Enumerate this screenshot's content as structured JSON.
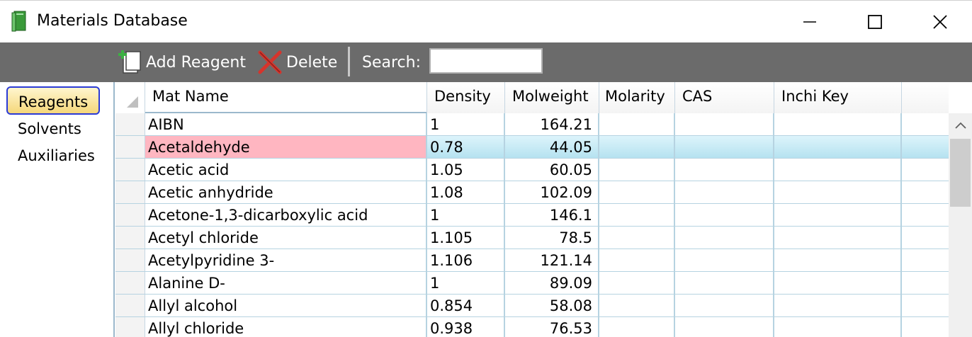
{
  "window": {
    "title": "Materials Database",
    "icon": "green-book-icon"
  },
  "toolbar": {
    "add_label": "Add Reagent",
    "delete_label": "Delete",
    "search_label": "Search:",
    "search_value": ""
  },
  "nav": {
    "items": [
      {
        "label": "Reagents",
        "selected": true
      },
      {
        "label": "Solvents",
        "selected": false
      },
      {
        "label": "Auxiliaries",
        "selected": false
      }
    ]
  },
  "grid": {
    "columns": [
      "Mat Name",
      "Density",
      "Molweight",
      "Molarity",
      "CAS",
      "Inchi Key"
    ],
    "rows": [
      {
        "name": "AIBN",
        "density": "1",
        "molweight": "164.21",
        "molarity": "",
        "cas": "",
        "inchi": ""
      },
      {
        "name": "Acetaldehyde",
        "density": "0.78",
        "molweight": "44.05",
        "molarity": "",
        "cas": "",
        "inchi": ""
      },
      {
        "name": "Acetic acid",
        "density": "1.05",
        "molweight": "60.05",
        "molarity": "",
        "cas": "",
        "inchi": ""
      },
      {
        "name": "Acetic anhydride",
        "density": "1.08",
        "molweight": "102.09",
        "molarity": "",
        "cas": "",
        "inchi": ""
      },
      {
        "name": "Acetone-1,3-dicarboxylic acid",
        "density": "1",
        "molweight": "146.1",
        "molarity": "",
        "cas": "",
        "inchi": ""
      },
      {
        "name": "Acetyl chloride",
        "density": "1.105",
        "molweight": "78.5",
        "molarity": "",
        "cas": "",
        "inchi": ""
      },
      {
        "name": "Acetylpyridine 3-",
        "density": "1.106",
        "molweight": "121.14",
        "molarity": "",
        "cas": "",
        "inchi": ""
      },
      {
        "name": "Alanine D-",
        "density": "1",
        "molweight": "89.09",
        "molarity": "",
        "cas": "",
        "inchi": ""
      },
      {
        "name": "Allyl alcohol",
        "density": "0.854",
        "molweight": "58.08",
        "molarity": "",
        "cas": "",
        "inchi": ""
      },
      {
        "name": "Allyl chloride",
        "density": "0.938",
        "molweight": "76.53",
        "molarity": "",
        "cas": "",
        "inchi": ""
      }
    ],
    "selected_row": 1,
    "colors": {
      "selected_row": "#b5e2f0",
      "highlight_cell": "#ffb6c1",
      "toolbar_bg": "#6b6b6b",
      "nav_selected_border": "#2b3bd6"
    }
  }
}
